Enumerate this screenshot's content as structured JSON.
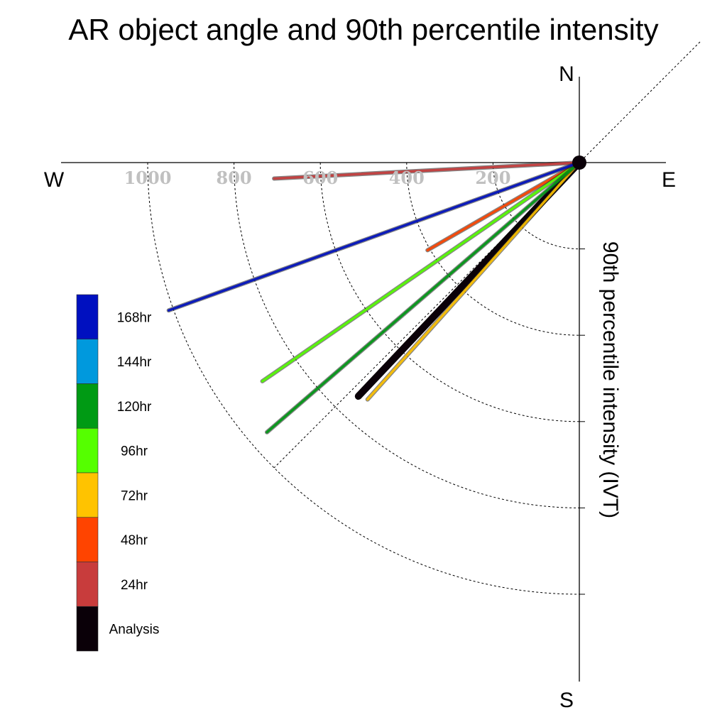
{
  "chart_data": {
    "type": "polar-vector",
    "title": "AR object angle and 90th percentile intensity",
    "radial_label": "90th percentile intensity (IVT)",
    "compass": {
      "north": "N",
      "south": "S",
      "east": "E",
      "west": "W"
    },
    "radial_ticks": [
      200,
      400,
      600,
      800,
      1000
    ],
    "radial_tick_labels": [
      "200",
      "400",
      "600",
      "800",
      "1000"
    ],
    "radial_max": 1160,
    "series": [
      {
        "name": "Analysis",
        "color": "#0a0008",
        "angle_deg_below_west": 46.6,
        "intensity": 745
      },
      {
        "name": "24hr",
        "color": "#c83c3c",
        "angle_deg_below_west": 3.0,
        "intensity": 708
      },
      {
        "name": "48hr",
        "color": "#ff4400",
        "angle_deg_below_west": 30.0,
        "intensity": 406
      },
      {
        "name": "72hr",
        "color": "#ffc300",
        "angle_deg_below_west": 48.2,
        "intensity": 736
      },
      {
        "name": "96hr",
        "color": "#55ff00",
        "angle_deg_below_west": 34.6,
        "intensity": 892
      },
      {
        "name": "120hr",
        "color": "#009a14",
        "angle_deg_below_west": 40.8,
        "intensity": 956
      },
      {
        "name": "168hr",
        "color": "#0010c0",
        "angle_deg_below_west": 19.8,
        "intensity": 1011
      }
    ],
    "legend": [
      {
        "label": "168hr",
        "color": "#0010c0"
      },
      {
        "label": "144hr",
        "color": "#0099dd"
      },
      {
        "label": "120hr",
        "color": "#009a14"
      },
      {
        "label": "96hr",
        "color": "#55ff00"
      },
      {
        "label": "72hr",
        "color": "#ffc300"
      },
      {
        "label": "48hr",
        "color": "#ff4400"
      },
      {
        "label": "24hr",
        "color": "#c83c3c"
      },
      {
        "label": "Analysis",
        "color": "#0a0008"
      }
    ],
    "grid": true
  }
}
